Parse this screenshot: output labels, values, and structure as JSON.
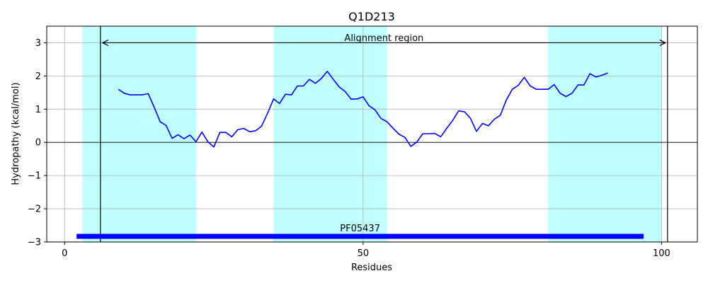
{
  "chart_data": {
    "type": "line",
    "title": "Q1D213",
    "xlabel": "Residues",
    "ylabel": "Hydropathy (kcal/mol)",
    "xlim": [
      -3,
      106
    ],
    "ylim": [
      -3,
      3.5
    ],
    "xticks": [
      0,
      50,
      100
    ],
    "xtick_labels": [
      "0",
      "50",
      "100"
    ],
    "yticks": [
      -3,
      -2,
      -1,
      0,
      1,
      2,
      3
    ],
    "ytick_labels": [
      "−3",
      "−2",
      "−1",
      "0",
      "1",
      "2",
      "3"
    ],
    "grid": true,
    "line_color": "#0000ff",
    "shade_color": "#c0ffff",
    "domain_color": "#0000ff",
    "shaded_regions": [
      [
        3,
        22
      ],
      [
        35,
        54
      ],
      [
        81,
        100
      ]
    ],
    "alignment": {
      "start": 6,
      "end": 101,
      "label": "Alignment region"
    },
    "domain": {
      "start": 2,
      "end": 97,
      "y": -2.83,
      "label": "PF05437"
    },
    "series": [
      {
        "x": [
          9,
          10,
          11,
          12,
          13,
          14,
          15,
          16,
          17,
          18,
          19,
          20,
          21,
          22,
          23,
          24,
          25,
          26,
          27,
          28,
          29,
          30,
          31,
          32,
          33,
          34,
          35,
          36,
          37,
          38,
          39,
          40,
          41,
          42,
          43,
          44,
          45,
          46,
          47,
          48,
          49,
          50,
          51,
          52,
          53,
          54,
          55,
          56,
          57,
          58,
          59,
          60,
          61,
          62,
          63,
          64,
          65,
          66,
          67,
          68,
          69,
          70,
          71,
          72,
          73,
          74,
          75,
          76,
          77,
          78,
          79,
          80,
          81,
          82,
          83,
          84,
          85,
          86,
          87,
          88,
          89,
          90,
          91
        ],
        "y": [
          1.6,
          1.48,
          1.43,
          1.43,
          1.43,
          1.47,
          1.06,
          0.62,
          0.51,
          0.12,
          0.23,
          0.11,
          0.22,
          0.02,
          0.31,
          0.02,
          -0.14,
          0.3,
          0.3,
          0.17,
          0.38,
          0.42,
          0.32,
          0.35,
          0.49,
          0.88,
          1.31,
          1.17,
          1.45,
          1.43,
          1.7,
          1.7,
          1.9,
          1.78,
          1.92,
          2.14,
          1.9,
          1.67,
          1.53,
          1.3,
          1.31,
          1.37,
          1.1,
          0.98,
          0.72,
          0.62,
          0.43,
          0.25,
          0.15,
          -0.12,
          0.01,
          0.26,
          0.26,
          0.27,
          0.17,
          0.42,
          0.66,
          0.95,
          0.92,
          0.72,
          0.33,
          0.57,
          0.5,
          0.7,
          0.82,
          1.28,
          1.6,
          1.72,
          1.96,
          1.7,
          1.6,
          1.6,
          1.6,
          1.74,
          1.48,
          1.38,
          1.48,
          1.73,
          1.73,
          2.07,
          1.97,
          2.02,
          2.09
        ]
      }
    ]
  }
}
